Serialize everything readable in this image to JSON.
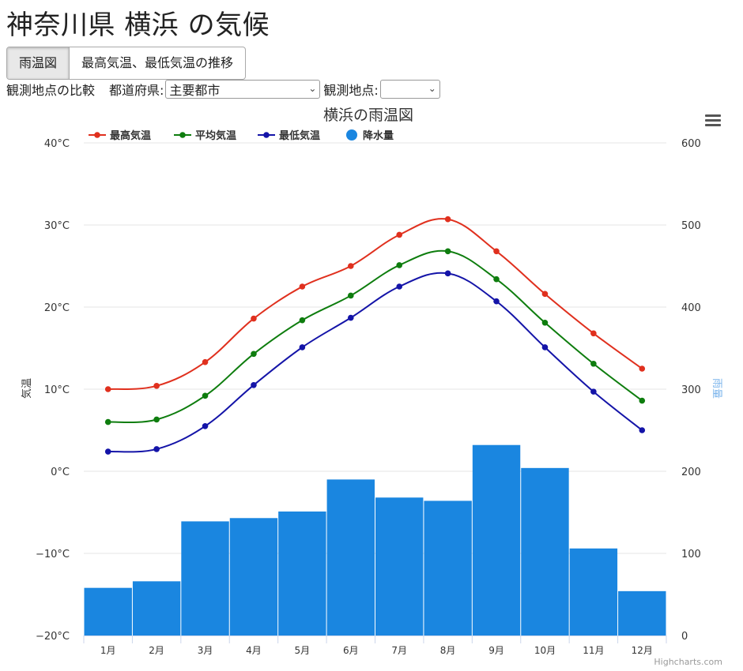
{
  "page": {
    "title": "神奈川県 横浜 の気候",
    "tabs": [
      {
        "label": "雨温図",
        "active": true
      },
      {
        "label": "最高気温、最低気温の推移",
        "active": false
      }
    ],
    "controls": {
      "compare_label": "観測地点の比較",
      "prefecture_label": "都道府県:",
      "prefecture_value": "主要都市",
      "station_label": "観測地点:",
      "station_value": ""
    },
    "credits": "Highcharts.com"
  },
  "chart_data": {
    "type": "line",
    "title": "横浜の雨温図",
    "categories": [
      "1月",
      "2月",
      "3月",
      "4月",
      "5月",
      "6月",
      "7月",
      "8月",
      "9月",
      "10月",
      "11月",
      "12月"
    ],
    "y_left": {
      "label": "気温",
      "min": -20,
      "max": 40,
      "step": 10,
      "tick_labels": [
        "−20°C",
        "−10°C",
        "0°C",
        "10°C",
        "20°C",
        "30°C",
        "40°C"
      ]
    },
    "y_right": {
      "label": "雨量",
      "min": 0,
      "max": 600,
      "step": 100,
      "tick_labels": [
        "0",
        "100",
        "200",
        "300",
        "400",
        "500",
        "600"
      ]
    },
    "legend_position": "top-left",
    "grid": true,
    "series": [
      {
        "name": "最高気温",
        "type": "line",
        "axis": "left",
        "color": "#e0301e",
        "values": [
          10.0,
          10.4,
          13.3,
          18.6,
          22.5,
          25.0,
          28.8,
          30.7,
          26.8,
          21.6,
          16.8,
          12.5
        ]
      },
      {
        "name": "平均気温",
        "type": "line",
        "axis": "left",
        "color": "#0e7d0e",
        "values": [
          6.0,
          6.3,
          9.2,
          14.3,
          18.4,
          21.4,
          25.1,
          26.8,
          23.4,
          18.1,
          13.1,
          8.6
        ]
      },
      {
        "name": "最低気温",
        "type": "line",
        "axis": "left",
        "color": "#1414a8",
        "values": [
          2.4,
          2.7,
          5.5,
          10.5,
          15.1,
          18.7,
          22.5,
          24.1,
          20.7,
          15.1,
          9.7,
          5.0
        ]
      },
      {
        "name": "降水量",
        "type": "column",
        "axis": "right",
        "color": "#1a86e0",
        "values": [
          58,
          66,
          139,
          143,
          151,
          190,
          168,
          164,
          232,
          204,
          106,
          54
        ]
      }
    ]
  }
}
